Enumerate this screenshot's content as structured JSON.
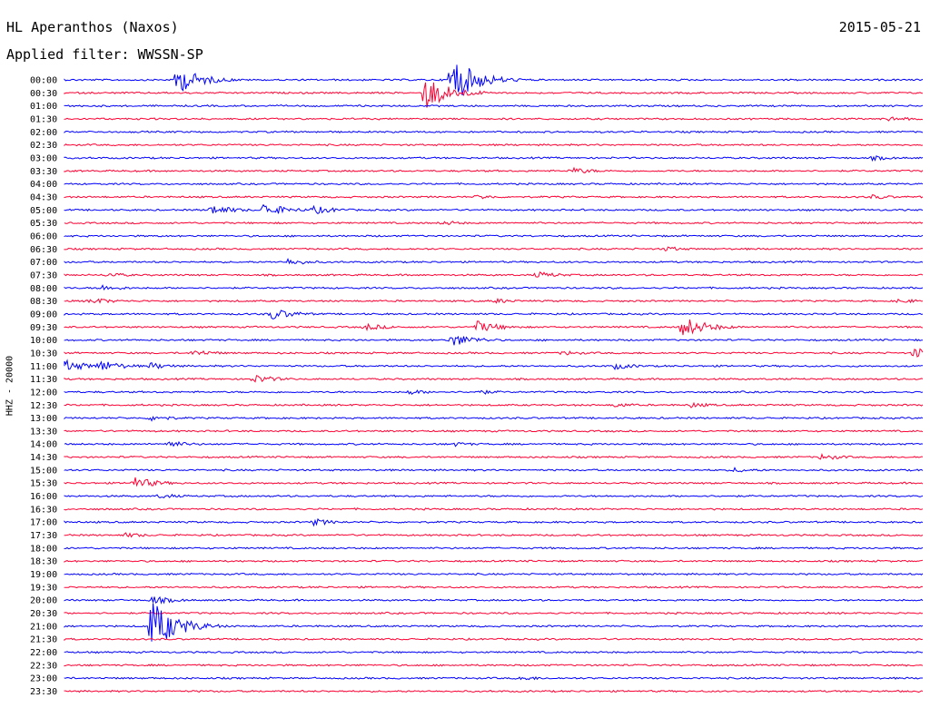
{
  "header": {
    "station": "HL Aperanthos (Naxos)",
    "date": "2015-05-21",
    "filter_label": "Applied filter: WWSSN-SP"
  },
  "chart_data": {
    "type": "line",
    "title": "HL Aperanthos (Naxos)",
    "subtitle": "Applied filter: WWSSN-SP",
    "ylabel": "HHZ - 20000",
    "xlabel": "",
    "grid": false,
    "colors": {
      "even": "#0000ff",
      "odd": "#ff0033"
    },
    "rows": [
      {
        "time": "00:00",
        "events": [
          [
            13,
            16
          ],
          [
            45,
            28
          ]
        ]
      },
      {
        "time": "00:30",
        "events": [
          [
            42,
            20
          ],
          [
            43,
            14
          ]
        ]
      },
      {
        "time": "01:00",
        "events": []
      },
      {
        "time": "01:30",
        "events": [
          [
            96,
            3
          ]
        ]
      },
      {
        "time": "02:00",
        "events": []
      },
      {
        "time": "02:30",
        "events": []
      },
      {
        "time": "03:00",
        "events": [
          [
            94,
            3
          ]
        ]
      },
      {
        "time": "03:30",
        "events": [
          [
            59,
            4
          ]
        ]
      },
      {
        "time": "04:00",
        "events": []
      },
      {
        "time": "04:30",
        "events": [
          [
            48,
            3
          ],
          [
            94,
            3
          ]
        ]
      },
      {
        "time": "05:00",
        "events": [
          [
            17,
            6
          ],
          [
            23,
            8
          ],
          [
            29,
            5
          ]
        ]
      },
      {
        "time": "05:30",
        "events": [
          [
            44,
            3
          ]
        ]
      },
      {
        "time": "06:00",
        "events": []
      },
      {
        "time": "06:30",
        "events": [
          [
            70,
            3
          ]
        ]
      },
      {
        "time": "07:00",
        "events": [
          [
            26,
            4
          ]
        ]
      },
      {
        "time": "07:30",
        "events": [
          [
            5,
            3
          ],
          [
            55,
            4
          ]
        ]
      },
      {
        "time": "08:00",
        "events": [
          [
            4,
            4
          ]
        ]
      },
      {
        "time": "08:30",
        "events": [
          [
            3,
            4
          ],
          [
            50,
            3
          ],
          [
            97,
            3
          ]
        ]
      },
      {
        "time": "09:00",
        "events": [
          [
            24,
            7
          ]
        ]
      },
      {
        "time": "09:30",
        "events": [
          [
            35,
            4
          ],
          [
            48,
            7
          ],
          [
            72,
            12
          ]
        ]
      },
      {
        "time": "10:00",
        "events": [
          [
            45,
            8
          ]
        ]
      },
      {
        "time": "10:30",
        "events": [
          [
            15,
            4
          ],
          [
            58,
            3
          ],
          [
            99,
            7
          ]
        ]
      },
      {
        "time": "11:00",
        "events": [
          [
            0,
            7
          ],
          [
            4,
            7
          ],
          [
            10,
            4
          ],
          [
            64,
            4
          ]
        ]
      },
      {
        "time": "11:30",
        "events": [
          [
            22,
            5
          ]
        ]
      },
      {
        "time": "12:00",
        "events": [
          [
            40,
            3
          ],
          [
            48,
            3
          ]
        ]
      },
      {
        "time": "12:30",
        "events": [
          [
            64,
            3
          ],
          [
            73,
            3
          ]
        ]
      },
      {
        "time": "13:00",
        "events": [
          [
            10,
            4
          ]
        ]
      },
      {
        "time": "13:30",
        "events": []
      },
      {
        "time": "14:00",
        "events": [
          [
            12,
            4
          ],
          [
            45,
            3
          ]
        ]
      },
      {
        "time": "14:30",
        "events": [
          [
            88,
            4
          ]
        ]
      },
      {
        "time": "15:00",
        "events": [
          [
            78,
            3
          ]
        ]
      },
      {
        "time": "15:30",
        "events": [
          [
            8,
            7
          ]
        ]
      },
      {
        "time": "16:00",
        "events": [
          [
            11,
            3
          ]
        ]
      },
      {
        "time": "16:30",
        "events": []
      },
      {
        "time": "17:00",
        "events": [
          [
            29,
            4
          ]
        ]
      },
      {
        "time": "17:30",
        "events": [
          [
            7,
            3
          ]
        ]
      },
      {
        "time": "18:00",
        "events": []
      },
      {
        "time": "18:30",
        "events": []
      },
      {
        "time": "19:00",
        "events": []
      },
      {
        "time": "19:30",
        "events": []
      },
      {
        "time": "20:00",
        "events": [
          [
            10,
            5
          ]
        ]
      },
      {
        "time": "20:30",
        "events": []
      },
      {
        "time": "21:00",
        "events": [
          [
            10,
            30
          ]
        ]
      },
      {
        "time": "21:30",
        "events": []
      },
      {
        "time": "22:00",
        "events": []
      },
      {
        "time": "22:30",
        "events": []
      },
      {
        "time": "23:00",
        "events": [
          [
            53,
            3
          ]
        ]
      },
      {
        "time": "23:30",
        "events": []
      }
    ]
  }
}
